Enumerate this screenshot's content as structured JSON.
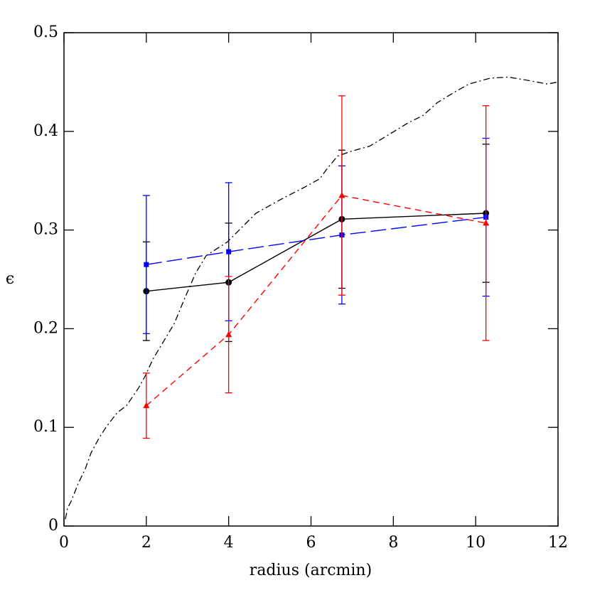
{
  "chart_data": {
    "type": "line",
    "x_label": "radius (arcmin)",
    "y_label": "ϵ",
    "xlim": [
      0,
      12
    ],
    "ylim": [
      0,
      0.5
    ],
    "xticks": [
      0,
      2,
      4,
      6,
      8,
      10,
      12
    ],
    "yticks": [
      0,
      0.1,
      0.2,
      0.3,
      0.4,
      0.5
    ],
    "x": [
      2,
      4,
      6.75,
      10.25
    ],
    "series": [
      {
        "color": "#000000",
        "marker": "circle",
        "dash": "solid",
        "values": [
          0.238,
          0.247,
          0.311,
          0.317
        ],
        "errors": [
          0.05,
          0.06,
          0.07,
          0.07
        ]
      },
      {
        "color": "#0000ff",
        "marker": "square",
        "dash": "long-dash",
        "values": [
          0.265,
          0.278,
          0.295,
          0.313
        ],
        "errors": [
          0.07,
          0.07,
          0.07,
          0.08
        ]
      },
      {
        "color": "#ff0000",
        "marker": "triangle",
        "dash": "dash",
        "values": [
          0.122,
          0.194,
          0.335,
          0.307
        ],
        "errors": [
          0.033,
          0.059,
          0.101,
          0.119
        ]
      }
    ],
    "curve": {
      "color": "#000000",
      "dash": "dash-dot",
      "x": [
        0.035,
        0.086,
        0.173,
        0.345,
        0.518,
        0.656,
        0.863,
        1.036,
        1.295,
        1.519,
        1.813,
        1.985,
        2.158,
        2.417,
        2.676,
        2.935,
        3.194,
        3.453,
        3.971,
        4.662,
        5.266,
        5.87,
        6.215,
        6.388,
        6.647,
        6.992,
        7.424,
        7.942,
        8.374,
        8.719,
        9.064,
        9.496,
        9.841,
        10.359,
        10.791,
        11.223,
        11.741,
        12.0
      ],
      "values": [
        0.007,
        0.018,
        0.025,
        0.043,
        0.058,
        0.074,
        0.09,
        0.101,
        0.115,
        0.122,
        0.14,
        0.153,
        0.169,
        0.187,
        0.205,
        0.231,
        0.256,
        0.274,
        0.288,
        0.317,
        0.331,
        0.344,
        0.352,
        0.362,
        0.375,
        0.38,
        0.385,
        0.398,
        0.409,
        0.416,
        0.429,
        0.44,
        0.448,
        0.454,
        0.455,
        0.452,
        0.448,
        0.45
      ]
    }
  }
}
